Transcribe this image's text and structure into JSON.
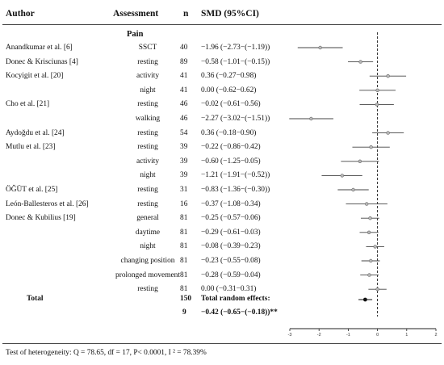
{
  "headers": {
    "author": "Author",
    "assessment": "Assessment",
    "n": "n",
    "smd": "SMD (95%CI)"
  },
  "section": "Pain",
  "rows": [
    {
      "author": "Anandkumar et al. [6]",
      "assessment": "SSCT",
      "n": "40",
      "smd_text": "−1.96 (−2.73−(−1.19))",
      "smd": -1.96,
      "lo": -2.73,
      "hi": -1.19
    },
    {
      "author": "Donec & Kriscіunas [4]",
      "assessment": "resting",
      "n": "89",
      "smd_text": "−0.58 (−1.01−(−0.15))",
      "smd": -0.58,
      "lo": -1.01,
      "hi": -0.15
    },
    {
      "author": "Kocyigit et al. [20]",
      "assessment": "activity",
      "n": "41",
      "smd_text": "0.36 (−0.27−0.98)",
      "smd": 0.36,
      "lo": -0.27,
      "hi": 0.98
    },
    {
      "author": "",
      "assessment": "night",
      "n": "41",
      "smd_text": "0.00 (−0.62−0.62)",
      "smd": 0.0,
      "lo": -0.62,
      "hi": 0.62
    },
    {
      "author": "Cho et al. [21]",
      "assessment": "resting",
      "n": "46",
      "smd_text": "−0.02 (−0.61−0.56)",
      "smd": -0.02,
      "lo": -0.61,
      "hi": 0.56
    },
    {
      "author": "",
      "assessment": "walking",
      "n": "46",
      "smd_text": "−2.27 (−3.02−(−1.51))",
      "smd": -2.27,
      "lo": -3.02,
      "hi": -1.51
    },
    {
      "author": "Aydoğdu et al. [24]",
      "assessment": "resting",
      "n": "54",
      "smd_text": "0.36 (−0.18−0.90)",
      "smd": 0.36,
      "lo": -0.18,
      "hi": 0.9
    },
    {
      "author": "Mutlu et al. [23]",
      "assessment": "resting",
      "n": "39",
      "smd_text": "−0.22 (−0.86−0.42)",
      "smd": -0.22,
      "lo": -0.86,
      "hi": 0.42
    },
    {
      "author": "",
      "assessment": "activity",
      "n": "39",
      "smd_text": "−0.60 (−1.25−0.05)",
      "smd": -0.6,
      "lo": -1.25,
      "hi": 0.05
    },
    {
      "author": "",
      "assessment": "night",
      "n": "39",
      "smd_text": "−1.21 (−1.91−(−0.52))",
      "smd": -1.21,
      "lo": -1.91,
      "hi": -0.52
    },
    {
      "author": "ÖĞÜT et al. [25]",
      "assessment": "resting",
      "n": "31",
      "smd_text": "−0.83 (−1.36−(−0.30))",
      "smd": -0.83,
      "lo": -1.36,
      "hi": -0.3
    },
    {
      "author": "León-Ballesteros et al. [26]",
      "assessment": "resting",
      "n": "16",
      "smd_text": "−0.37 (−1.08−0.34)",
      "smd": -0.37,
      "lo": -1.08,
      "hi": 0.34
    },
    {
      "author": "Donec & Kubilius [19]",
      "assessment": "general",
      "n": "81",
      "smd_text": "−0.25 (−0.57−0.06)",
      "smd": -0.25,
      "lo": -0.57,
      "hi": 0.06
    },
    {
      "author": "",
      "assessment": "daytime",
      "n": "81",
      "smd_text": "−0.29 (−0.61−0.03)",
      "smd": -0.29,
      "lo": -0.61,
      "hi": 0.03
    },
    {
      "author": "",
      "assessment": "night",
      "n": "81",
      "smd_text": "−0.08 (−0.39−0.23)",
      "smd": -0.08,
      "lo": -0.39,
      "hi": 0.23
    },
    {
      "author": "",
      "assessment": "changing position",
      "n": "81",
      "smd_text": "−0.23 (−0.55−0.08)",
      "smd": -0.23,
      "lo": -0.55,
      "hi": 0.08
    },
    {
      "author": "",
      "assessment": "prolonged movement",
      "n": "81",
      "smd_text": "−0.28 (−0.59−0.04)",
      "smd": -0.28,
      "lo": -0.59,
      "hi": 0.04
    },
    {
      "author": "",
      "assessment": "resting",
      "n": "81",
      "smd_text": "0.00 (−0.31−0.31)",
      "smd": 0.0,
      "lo": -0.31,
      "hi": 0.31
    }
  ],
  "total": {
    "label": "Total",
    "n": "150",
    "label2": "Total random effects:",
    "n2": "9",
    "smd_text": "−0.42 (−0.65−(−0.18))**",
    "smd": -0.42,
    "lo": -0.65,
    "hi": -0.18
  },
  "footnote": "Test of heterogeneity: Q = 78.65, df = 17, P< 0.0001, I ² = 78.39%",
  "chart_data": {
    "type": "scatter",
    "title": "",
    "xlim": [
      -3,
      2
    ],
    "xticks": [
      "-3",
      "-2",
      "-1",
      "0",
      "1",
      "2"
    ],
    "reference_line": 0,
    "grid": false,
    "colors": {
      "study_marker": "#b8b8b8",
      "summary_marker": "#111111",
      "line": "#444444"
    }
  }
}
